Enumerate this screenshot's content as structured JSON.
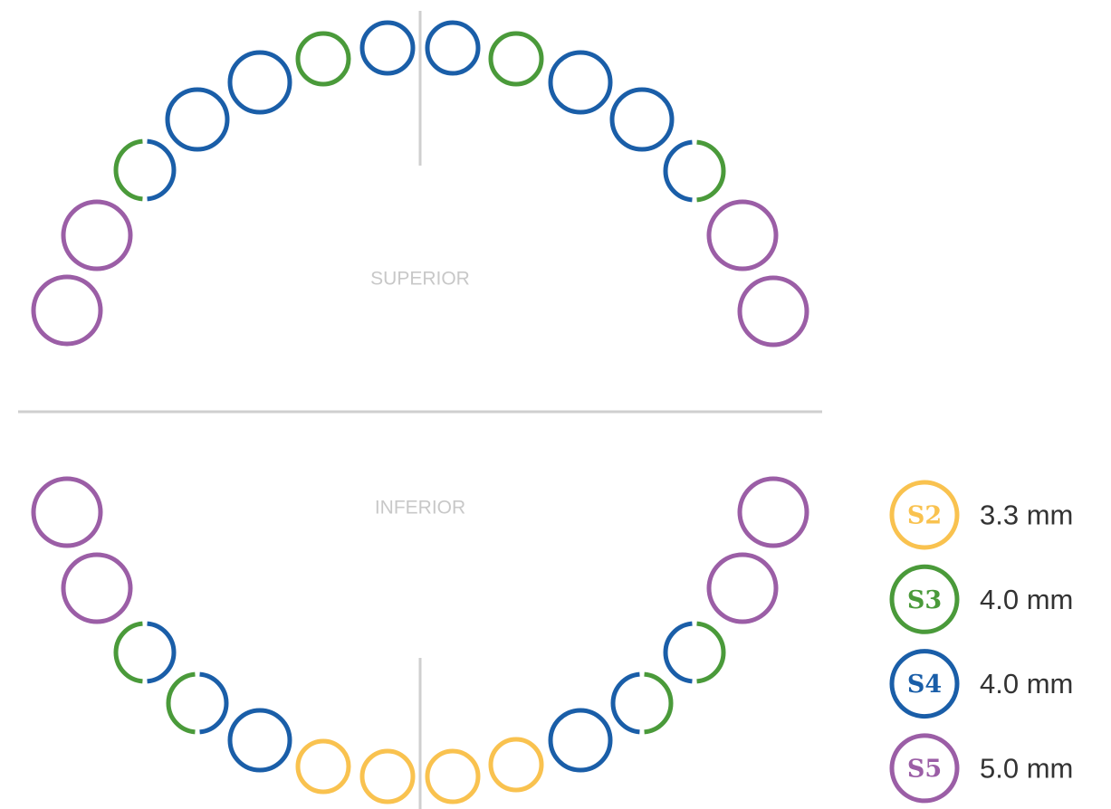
{
  "diagram": {
    "upper_label": "SUPERIOR",
    "lower_label": "INFERIOR",
    "legend": [
      {
        "code": "S2",
        "size": "3.3 mm"
      },
      {
        "code": "S3",
        "size": "4.0 mm"
      },
      {
        "code": "S4",
        "size": "4.0 mm"
      },
      {
        "code": "S5",
        "size": "5.0 mm"
      }
    ]
  }
}
